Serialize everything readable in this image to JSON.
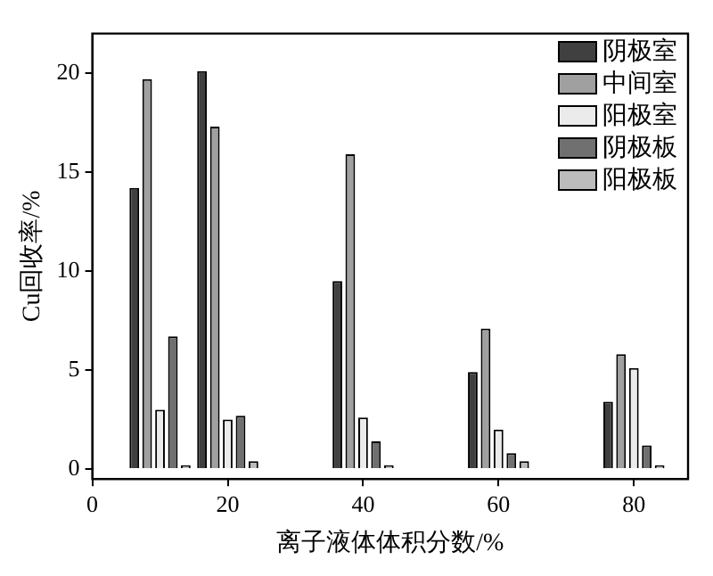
{
  "chart_data": {
    "type": "bar",
    "xlabel": "离子液体体积分数/%",
    "ylabel": "Cu回收率/%",
    "x": [
      10,
      20,
      40,
      60,
      80
    ],
    "series": [
      {
        "name": "阴极室",
        "color": "#404040",
        "values": [
          14.2,
          20.1,
          9.5,
          4.9,
          3.4
        ]
      },
      {
        "name": "中间室",
        "color": "#a0a0a0",
        "values": [
          19.7,
          17.3,
          15.9,
          7.1,
          5.8
        ]
      },
      {
        "name": "阳极室",
        "color": "#ebebeb",
        "values": [
          3.0,
          2.5,
          2.6,
          2.0,
          5.1
        ]
      },
      {
        "name": "阴极板",
        "color": "#707070",
        "values": [
          6.7,
          2.7,
          1.4,
          0.8,
          1.2
        ]
      },
      {
        "name": "阳极板",
        "color": "#bcbcbc",
        "values": [
          0.2,
          0.4,
          0.2,
          0.4,
          0.2
        ]
      }
    ],
    "xlim": [
      0,
      88
    ],
    "xticks": [
      0,
      20,
      40,
      60,
      80
    ],
    "ylim": [
      -0.5,
      22
    ],
    "yticks": [
      0,
      5,
      10,
      15,
      20
    ],
    "grid": false,
    "legend": "top right"
  }
}
